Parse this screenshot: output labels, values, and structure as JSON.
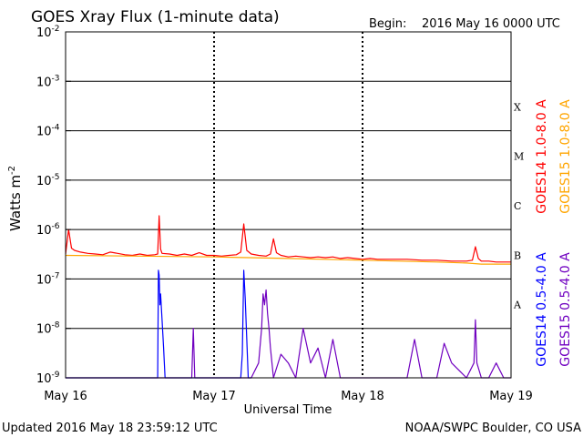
{
  "page": {
    "title": "GOES Xray Flux (1-minute data)",
    "begin_label": "Begin:",
    "begin_value": "2016 May 16 0000 UTC",
    "updated": "Updated 2016 May 18 23:59:12 UTC",
    "credit": "NOAA/SWPC Boulder, CO USA"
  },
  "chart_data": {
    "type": "line",
    "title": "GOES Xray Flux (1-minute data)",
    "xlabel": "Universal Time",
    "ylabel": "Watts m",
    "ylabel_sup": "-2",
    "x_unit": "days since 2016 May 16 0000 UTC",
    "xlim": [
      0,
      3
    ],
    "x_ticks": [
      {
        "x": 0,
        "label": "May 16"
      },
      {
        "x": 1,
        "label": "May 17"
      },
      {
        "x": 2,
        "label": "May 18"
      },
      {
        "x": 3,
        "label": "May 19"
      }
    ],
    "y_scale": "log",
    "ylim": [
      1e-09,
      0.01
    ],
    "y_ticks": [
      {
        "exp": -9,
        "label": "10",
        "sup": "-9"
      },
      {
        "exp": -8,
        "label": "10",
        "sup": "-8"
      },
      {
        "exp": -7,
        "label": "10",
        "sup": "-7"
      },
      {
        "exp": -6,
        "label": "10",
        "sup": "-6"
      },
      {
        "exp": -5,
        "label": "10",
        "sup": "-5"
      },
      {
        "exp": -4,
        "label": "10",
        "sup": "-4"
      },
      {
        "exp": -3,
        "label": "10",
        "sup": "-3"
      },
      {
        "exp": -2,
        "label": "10",
        "sup": "-2"
      }
    ],
    "flare_classes": [
      {
        "label": "A",
        "exp": -7.5
      },
      {
        "label": "B",
        "exp": -6.5
      },
      {
        "label": "C",
        "exp": -5.5
      },
      {
        "label": "M",
        "exp": -4.5
      },
      {
        "label": "X",
        "exp": -3.5
      }
    ],
    "grid": "horizontal lines at each decade; dashed vertical lines at day boundaries",
    "legend": [
      {
        "name": "GOES14 1.0-8.0 A",
        "color": "#ff0000"
      },
      {
        "name": "GOES15 1.0-8.0 A",
        "color": "#ffa500"
      },
      {
        "name": "GOES14 0.5-4.0 A",
        "color": "#0000ff"
      },
      {
        "name": "GOES15 0.5-4.0 A",
        "color": "#7000c0"
      }
    ],
    "series": [
      {
        "name": "GOES14 1.0-8.0 A",
        "color": "#ff0000",
        "x": [
          0,
          0.02,
          0.04,
          0.06,
          0.1,
          0.15,
          0.2,
          0.25,
          0.3,
          0.35,
          0.4,
          0.45,
          0.5,
          0.55,
          0.6,
          0.62,
          0.63,
          0.64,
          0.65,
          0.7,
          0.75,
          0.8,
          0.85,
          0.9,
          0.95,
          1.0,
          1.05,
          1.1,
          1.15,
          1.18,
          1.2,
          1.22,
          1.25,
          1.3,
          1.35,
          1.38,
          1.4,
          1.42,
          1.45,
          1.5,
          1.55,
          1.6,
          1.65,
          1.7,
          1.75,
          1.8,
          1.85,
          1.9,
          1.95,
          2.0,
          2.05,
          2.1,
          2.2,
          2.3,
          2.4,
          2.5,
          2.6,
          2.7,
          2.74,
          2.76,
          2.78,
          2.8,
          2.85,
          2.9,
          2.95,
          3.0
        ],
        "y": [
          3.2e-07,
          1e-06,
          4.2e-07,
          3.8e-07,
          3.5e-07,
          3.3e-07,
          3.2e-07,
          3.1e-07,
          3.5e-07,
          3.3e-07,
          3.1e-07,
          3e-07,
          3.2e-07,
          3e-07,
          3.1e-07,
          3.2e-07,
          1.9e-06,
          4e-07,
          3.3e-07,
          3.2e-07,
          3e-07,
          3.2e-07,
          3e-07,
          3.4e-07,
          3e-07,
          3e-07,
          2.9e-07,
          3e-07,
          3.1e-07,
          3.5e-07,
          1.3e-06,
          3.8e-07,
          3.2e-07,
          3e-07,
          2.9e-07,
          3.2e-07,
          6.5e-07,
          3.4e-07,
          3e-07,
          2.8e-07,
          2.9e-07,
          2.8e-07,
          2.7e-07,
          2.8e-07,
          2.7e-07,
          2.8e-07,
          2.6e-07,
          2.7e-07,
          2.6e-07,
          2.5e-07,
          2.6e-07,
          2.5e-07,
          2.5e-07,
          2.5e-07,
          2.4e-07,
          2.4e-07,
          2.3e-07,
          2.3e-07,
          2.4e-07,
          4.5e-07,
          2.6e-07,
          2.3e-07,
          2.3e-07,
          2.2e-07,
          2.2e-07,
          2.2e-07
        ]
      },
      {
        "name": "GOES15 1.0-8.0 A",
        "color": "#ffa500",
        "x": [
          0,
          0.5,
          1.0,
          1.5,
          2.0,
          2.5,
          2.7,
          2.8,
          2.9,
          3.0
        ],
        "y": [
          3e-07,
          2.9e-07,
          2.8e-07,
          2.6e-07,
          2.4e-07,
          2.2e-07,
          2.1e-07,
          2e-07,
          2e-07,
          2e-07
        ]
      },
      {
        "name": "GOES14 0.5-4.0 A",
        "color": "#0000ff",
        "x": [
          0,
          0.6,
          0.62,
          0.625,
          0.63,
          0.635,
          0.64,
          0.65,
          0.66,
          0.67,
          0.68,
          1.1,
          1.15,
          1.17,
          1.18,
          1.19,
          1.2,
          1.21,
          1.22,
          1.23,
          1.25
        ],
        "y": [
          1e-09,
          1e-09,
          1e-09,
          1.5e-07,
          1.2e-07,
          3e-08,
          5e-08,
          1.5e-08,
          4e-09,
          1e-09,
          1e-09,
          1e-09,
          1e-09,
          1e-09,
          1e-09,
          3e-09,
          1.5e-07,
          4e-08,
          6e-09,
          1e-09,
          1e-09
        ]
      },
      {
        "name": "GOES15 0.5-4.0 A",
        "color": "#7000c0",
        "x": [
          0,
          0.85,
          0.86,
          0.87,
          0.9,
          1.0,
          1.1,
          1.2,
          1.25,
          1.3,
          1.32,
          1.33,
          1.34,
          1.35,
          1.36,
          1.37,
          1.38,
          1.4,
          1.45,
          1.5,
          1.55,
          1.6,
          1.65,
          1.7,
          1.75,
          1.8,
          1.85,
          1.9,
          2.0,
          2.1,
          2.2,
          2.3,
          2.35,
          2.4,
          2.5,
          2.55,
          2.6,
          2.7,
          2.75,
          2.76,
          2.77,
          2.8,
          2.85,
          2.9,
          2.95,
          3.0
        ],
        "y": [
          1e-09,
          1e-09,
          1e-08,
          1e-09,
          1e-09,
          1e-09,
          1e-09,
          1e-09,
          1e-09,
          2e-09,
          1e-08,
          5e-08,
          3e-08,
          6e-08,
          2e-08,
          1e-08,
          4e-09,
          1e-09,
          3e-09,
          2e-09,
          1e-09,
          1e-08,
          2e-09,
          4e-09,
          1e-09,
          6e-09,
          1e-09,
          1e-09,
          1e-09,
          1e-09,
          1e-09,
          1e-09,
          6e-09,
          1e-09,
          1e-09,
          5e-09,
          2e-09,
          1e-09,
          2e-09,
          1.5e-08,
          2e-09,
          1e-09,
          1e-09,
          2e-09,
          1e-09,
          1e-09
        ]
      }
    ]
  }
}
